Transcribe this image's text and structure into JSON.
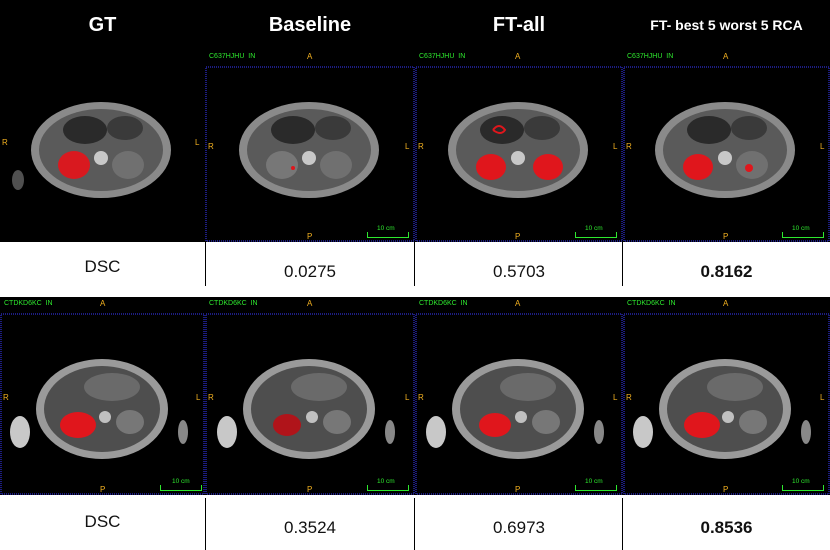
{
  "headers": [
    "GT",
    "Baseline",
    "FT-all",
    "FT- best 5 worst 5 RCA"
  ],
  "orientation": {
    "top": "A",
    "left": "R",
    "right": "L",
    "bottom": "P"
  },
  "ruler_label": "10 cm",
  "rows": [
    {
      "scan_id": "C637HJHU  IN",
      "row_label": "DSC",
      "dsc": [
        "0.0275",
        "0.5703",
        "0.8162"
      ],
      "best": "0.8162"
    },
    {
      "scan_id": "CTDKD6KC  IN",
      "row_label": "DSC",
      "dsc": [
        "0.3524",
        "0.6973",
        "0.8536"
      ],
      "best": "0.8536"
    }
  ],
  "colors": {
    "label_green": "#2ee82e",
    "orientation_orange": "#f2b020",
    "segmentation_red": "#e0161c",
    "grid_blue": "#3a3aff"
  }
}
